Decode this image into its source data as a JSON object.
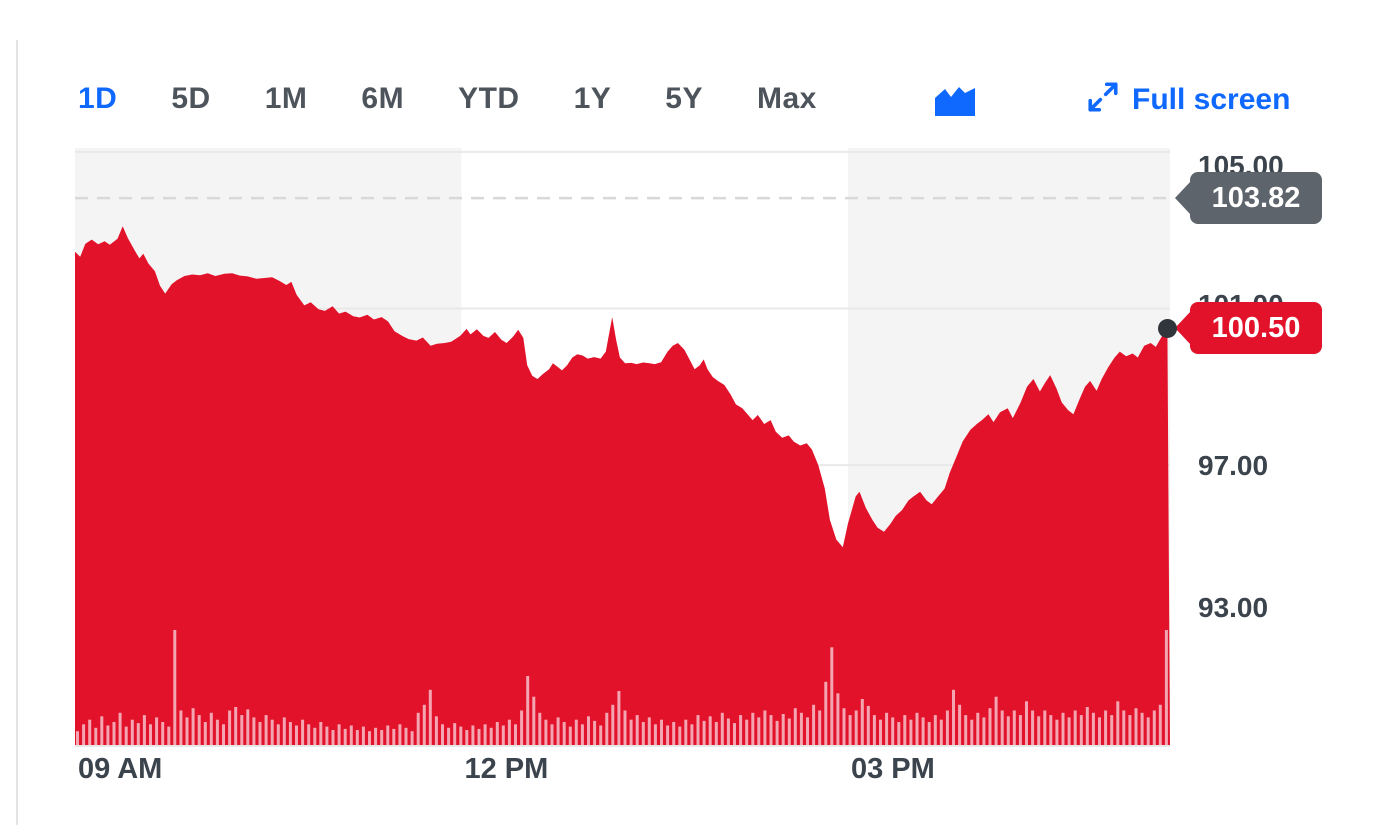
{
  "toolbar": {
    "ranges": [
      {
        "id": "1d",
        "label": "1D",
        "active": true
      },
      {
        "id": "5d",
        "label": "5D",
        "active": false
      },
      {
        "id": "1m",
        "label": "1M",
        "active": false
      },
      {
        "id": "6m",
        "label": "6M",
        "active": false
      },
      {
        "id": "ytd",
        "label": "YTD",
        "active": false
      },
      {
        "id": "1y",
        "label": "1Y",
        "active": false
      },
      {
        "id": "5y",
        "label": "5Y",
        "active": false
      },
      {
        "id": "max",
        "label": "Max",
        "active": false
      }
    ],
    "chart_type_icon": "area-chart-icon",
    "fullscreen_label": "Full screen"
  },
  "colors": {
    "accent_blue": "#0f69ff",
    "series_red": "#e3122b",
    "volume_pink": "#f3a6b1",
    "prev_close_badge_gray": "#5d646c",
    "last_price_badge_red": "#e3122b",
    "band_shade": "#f4f4f4",
    "gridline": "#e9e9e9",
    "dashed_line": "#d8d8d8",
    "plot_bottom_line": "#e7e7e7",
    "axis_text": "#3b434d",
    "end_dot": "#30353c"
  },
  "chart_data": {
    "type": "area",
    "x_unit": "hour-of-day",
    "x_range": [
      9,
      17.5
    ],
    "y_range": [
      89.8,
      105.1
    ],
    "grid": true,
    "legend": "none",
    "x_ticks": [
      {
        "t": 9,
        "label": "09 AM"
      },
      {
        "t": 12,
        "label": "12 PM"
      },
      {
        "t": 15,
        "label": "03 PM"
      }
    ],
    "y_ticks": [
      {
        "value": 105,
        "label": "105.00"
      },
      {
        "value": 101,
        "label": "101.00"
      },
      {
        "value": 97,
        "label": "97.00"
      },
      {
        "value": 93,
        "label": "93.00"
      }
    ],
    "shaded_bands": [
      [
        9,
        12
      ],
      [
        15,
        17.5
      ]
    ],
    "previous_close": {
      "value": 103.82,
      "label": "103.82"
    },
    "last_price": {
      "value": 100.5,
      "label": "100.50"
    },
    "price_series": [
      [
        9.0,
        102.45
      ],
      [
        9.04,
        102.32
      ],
      [
        9.08,
        102.65
      ],
      [
        9.13,
        102.76
      ],
      [
        9.18,
        102.64
      ],
      [
        9.23,
        102.72
      ],
      [
        9.27,
        102.63
      ],
      [
        9.33,
        102.78
      ],
      [
        9.37,
        103.1
      ],
      [
        9.41,
        102.8
      ],
      [
        9.46,
        102.5
      ],
      [
        9.5,
        102.28
      ],
      [
        9.53,
        102.4
      ],
      [
        9.57,
        102.15
      ],
      [
        9.62,
        101.95
      ],
      [
        9.66,
        101.58
      ],
      [
        9.7,
        101.38
      ],
      [
        9.75,
        101.62
      ],
      [
        9.79,
        101.72
      ],
      [
        9.85,
        101.83
      ],
      [
        9.91,
        101.87
      ],
      [
        9.97,
        101.85
      ],
      [
        10.03,
        101.9
      ],
      [
        10.09,
        101.83
      ],
      [
        10.16,
        101.89
      ],
      [
        10.22,
        101.9
      ],
      [
        10.28,
        101.84
      ],
      [
        10.34,
        101.82
      ],
      [
        10.41,
        101.76
      ],
      [
        10.47,
        101.78
      ],
      [
        10.53,
        101.8
      ],
      [
        10.59,
        101.7
      ],
      [
        10.64,
        101.6
      ],
      [
        10.68,
        101.68
      ],
      [
        10.72,
        101.35
      ],
      [
        10.78,
        101.08
      ],
      [
        10.83,
        101.16
      ],
      [
        10.89,
        100.98
      ],
      [
        10.94,
        100.94
      ],
      [
        11.0,
        101.06
      ],
      [
        11.05,
        100.87
      ],
      [
        11.1,
        100.92
      ],
      [
        11.16,
        100.8
      ],
      [
        11.21,
        100.77
      ],
      [
        11.27,
        100.84
      ],
      [
        11.32,
        100.72
      ],
      [
        11.38,
        100.78
      ],
      [
        11.43,
        100.67
      ],
      [
        11.48,
        100.42
      ],
      [
        11.54,
        100.3
      ],
      [
        11.59,
        100.22
      ],
      [
        11.65,
        100.18
      ],
      [
        11.7,
        100.26
      ],
      [
        11.76,
        100.05
      ],
      [
        11.81,
        100.1
      ],
      [
        11.87,
        100.12
      ],
      [
        11.92,
        100.15
      ],
      [
        11.99,
        100.3
      ],
      [
        12.04,
        100.48
      ],
      [
        12.07,
        100.34
      ],
      [
        12.12,
        100.47
      ],
      [
        12.17,
        100.3
      ],
      [
        12.21,
        100.25
      ],
      [
        12.26,
        100.4
      ],
      [
        12.31,
        100.2
      ],
      [
        12.35,
        100.12
      ],
      [
        12.4,
        100.28
      ],
      [
        12.44,
        100.46
      ],
      [
        12.48,
        100.25
      ],
      [
        12.51,
        99.55
      ],
      [
        12.55,
        99.28
      ],
      [
        12.59,
        99.2
      ],
      [
        12.63,
        99.32
      ],
      [
        12.68,
        99.45
      ],
      [
        12.71,
        99.6
      ],
      [
        12.75,
        99.5
      ],
      [
        12.78,
        99.42
      ],
      [
        12.82,
        99.55
      ],
      [
        12.86,
        99.75
      ],
      [
        12.9,
        99.83
      ],
      [
        12.94,
        99.8
      ],
      [
        12.98,
        99.72
      ],
      [
        13.03,
        99.76
      ],
      [
        13.08,
        99.72
      ],
      [
        13.12,
        99.9
      ],
      [
        13.17,
        100.78
      ],
      [
        13.2,
        100.2
      ],
      [
        13.23,
        99.75
      ],
      [
        13.27,
        99.6
      ],
      [
        13.32,
        99.61
      ],
      [
        13.36,
        99.58
      ],
      [
        13.41,
        99.62
      ],
      [
        13.46,
        99.6
      ],
      [
        13.5,
        99.58
      ],
      [
        13.55,
        99.63
      ],
      [
        13.6,
        99.9
      ],
      [
        13.64,
        100.05
      ],
      [
        13.68,
        100.12
      ],
      [
        13.73,
        99.95
      ],
      [
        13.77,
        99.7
      ],
      [
        13.81,
        99.45
      ],
      [
        13.85,
        99.55
      ],
      [
        13.88,
        99.7
      ],
      [
        13.91,
        99.45
      ],
      [
        13.95,
        99.25
      ],
      [
        13.99,
        99.15
      ],
      [
        14.04,
        99.05
      ],
      [
        14.09,
        98.8
      ],
      [
        14.13,
        98.55
      ],
      [
        14.18,
        98.45
      ],
      [
        14.22,
        98.3
      ],
      [
        14.26,
        98.15
      ],
      [
        14.3,
        98.28
      ],
      [
        14.35,
        98.05
      ],
      [
        14.4,
        98.15
      ],
      [
        14.44,
        97.85
      ],
      [
        14.49,
        97.7
      ],
      [
        14.54,
        97.76
      ],
      [
        14.58,
        97.6
      ],
      [
        14.63,
        97.5
      ],
      [
        14.68,
        97.56
      ],
      [
        14.72,
        97.4
      ],
      [
        14.77,
        97.0
      ],
      [
        14.82,
        96.4
      ],
      [
        14.86,
        95.6
      ],
      [
        14.91,
        95.1
      ],
      [
        14.96,
        94.9
      ],
      [
        15.0,
        95.5
      ],
      [
        15.06,
        96.2
      ],
      [
        15.09,
        96.32
      ],
      [
        15.14,
        95.9
      ],
      [
        15.19,
        95.6
      ],
      [
        15.23,
        95.4
      ],
      [
        15.28,
        95.3
      ],
      [
        15.33,
        95.5
      ],
      [
        15.37,
        95.7
      ],
      [
        15.42,
        95.85
      ],
      [
        15.47,
        96.1
      ],
      [
        15.51,
        96.2
      ],
      [
        15.56,
        96.32
      ],
      [
        15.61,
        96.1
      ],
      [
        15.65,
        96.0
      ],
      [
        15.7,
        96.2
      ],
      [
        15.75,
        96.4
      ],
      [
        15.79,
        96.8
      ],
      [
        15.84,
        97.2
      ],
      [
        15.89,
        97.6
      ],
      [
        15.95,
        97.9
      ],
      [
        16.0,
        98.05
      ],
      [
        16.04,
        98.15
      ],
      [
        16.09,
        98.3
      ],
      [
        16.13,
        98.1
      ],
      [
        16.18,
        98.35
      ],
      [
        16.24,
        98.45
      ],
      [
        16.28,
        98.2
      ],
      [
        16.34,
        98.6
      ],
      [
        16.39,
        99.0
      ],
      [
        16.44,
        99.2
      ],
      [
        16.49,
        98.88
      ],
      [
        16.53,
        99.1
      ],
      [
        16.57,
        99.3
      ],
      [
        16.62,
        98.95
      ],
      [
        16.66,
        98.6
      ],
      [
        16.71,
        98.4
      ],
      [
        16.75,
        98.3
      ],
      [
        16.8,
        98.7
      ],
      [
        16.84,
        99.0
      ],
      [
        16.88,
        99.15
      ],
      [
        16.93,
        98.9
      ],
      [
        16.97,
        99.2
      ],
      [
        17.02,
        99.5
      ],
      [
        17.07,
        99.75
      ],
      [
        17.11,
        99.9
      ],
      [
        17.16,
        99.78
      ],
      [
        17.21,
        99.85
      ],
      [
        17.25,
        99.75
      ],
      [
        17.3,
        100.05
      ],
      [
        17.35,
        100.12
      ],
      [
        17.39,
        100.02
      ],
      [
        17.43,
        100.25
      ],
      [
        17.48,
        100.5
      ]
    ],
    "volume_relative": [
      0.12,
      0.18,
      0.22,
      0.15,
      0.25,
      0.17,
      0.2,
      0.28,
      0.16,
      0.22,
      0.19,
      0.26,
      0.18,
      0.24,
      0.2,
      0.16,
      1.0,
      0.3,
      0.24,
      0.32,
      0.26,
      0.2,
      0.28,
      0.22,
      0.18,
      0.3,
      0.33,
      0.26,
      0.31,
      0.24,
      0.2,
      0.26,
      0.22,
      0.18,
      0.24,
      0.2,
      0.17,
      0.22,
      0.18,
      0.15,
      0.2,
      0.16,
      0.13,
      0.18,
      0.14,
      0.17,
      0.13,
      0.16,
      0.12,
      0.15,
      0.13,
      0.17,
      0.14,
      0.18,
      0.15,
      0.12,
      0.28,
      0.35,
      0.48,
      0.25,
      0.18,
      0.15,
      0.19,
      0.16,
      0.13,
      0.17,
      0.14,
      0.18,
      0.15,
      0.2,
      0.17,
      0.22,
      0.18,
      0.3,
      0.6,
      0.42,
      0.28,
      0.22,
      0.18,
      0.24,
      0.2,
      0.16,
      0.22,
      0.18,
      0.25,
      0.21,
      0.17,
      0.28,
      0.35,
      0.47,
      0.3,
      0.22,
      0.26,
      0.2,
      0.24,
      0.18,
      0.22,
      0.17,
      0.2,
      0.16,
      0.22,
      0.18,
      0.26,
      0.21,
      0.25,
      0.2,
      0.28,
      0.23,
      0.19,
      0.26,
      0.22,
      0.28,
      0.24,
      0.3,
      0.26,
      0.21,
      0.27,
      0.23,
      0.32,
      0.28,
      0.24,
      0.35,
      0.3,
      0.55,
      0.85,
      0.45,
      0.32,
      0.26,
      0.3,
      0.4,
      0.34,
      0.26,
      0.22,
      0.28,
      0.24,
      0.2,
      0.26,
      0.22,
      0.28,
      0.24,
      0.2,
      0.26,
      0.22,
      0.3,
      0.48,
      0.35,
      0.26,
      0.22,
      0.28,
      0.24,
      0.32,
      0.42,
      0.3,
      0.25,
      0.3,
      0.26,
      0.38,
      0.3,
      0.25,
      0.3,
      0.26,
      0.22,
      0.28,
      0.24,
      0.3,
      0.26,
      0.33,
      0.28,
      0.24,
      0.3,
      0.26,
      0.38,
      0.3,
      0.26,
      0.32,
      0.28,
      0.24,
      0.3,
      0.35,
      1.0
    ]
  }
}
